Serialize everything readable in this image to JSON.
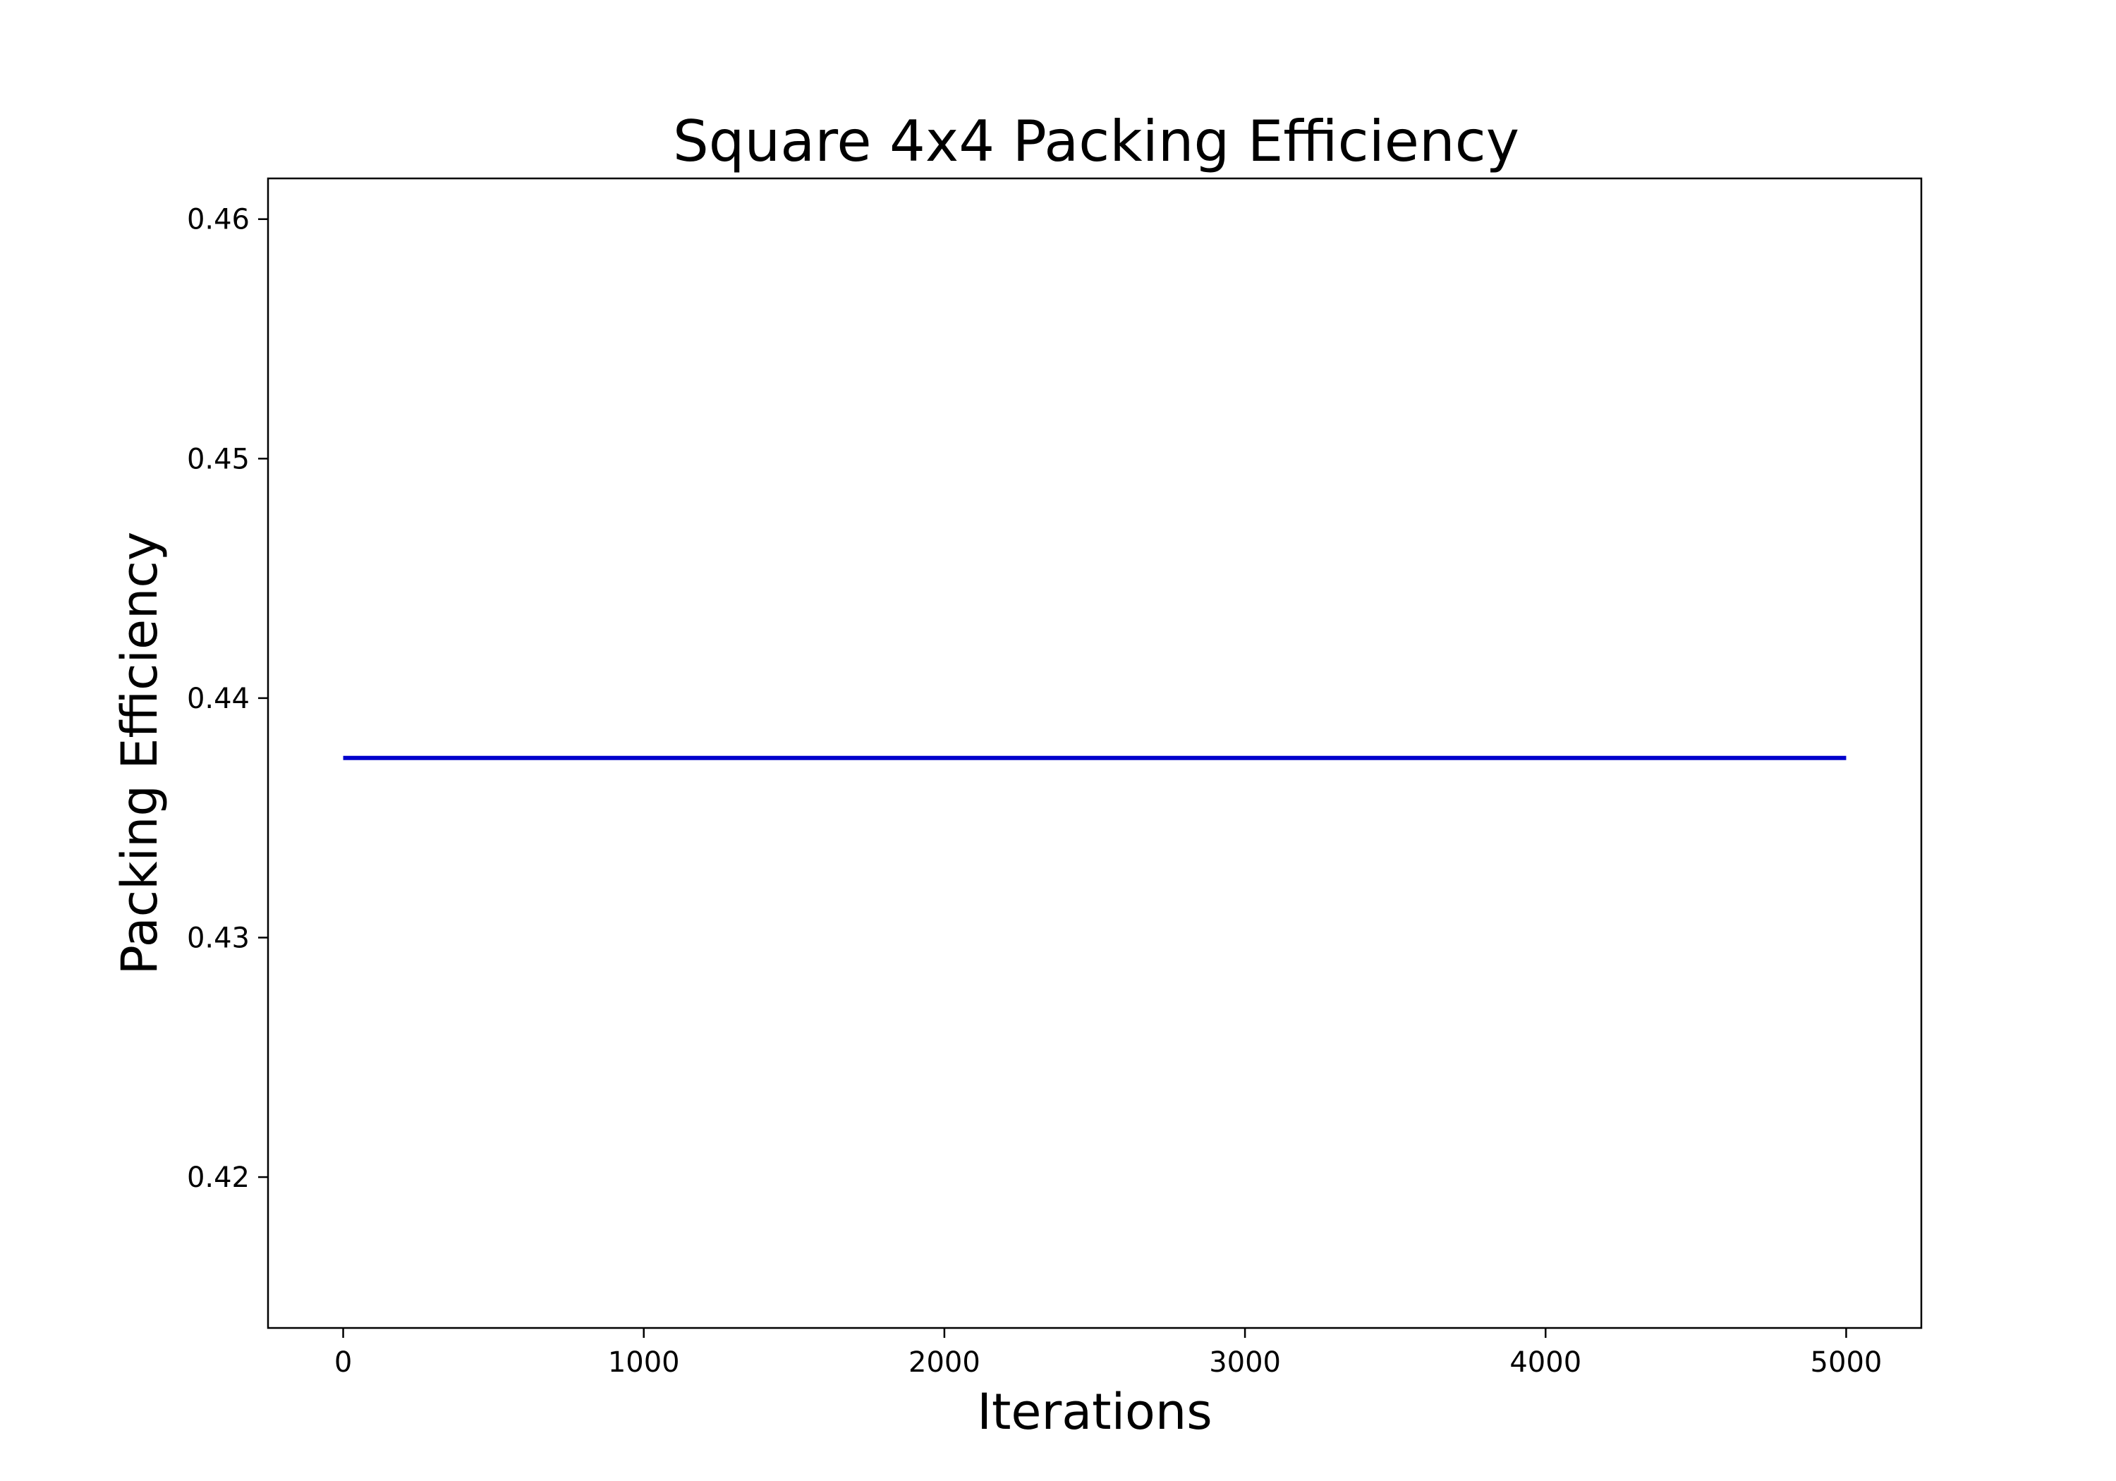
{
  "chart_data": {
    "type": "line",
    "title": "Square 4x4 Packing Efficiency",
    "xlabel": "Iterations",
    "ylabel": "Packing Efficiency",
    "xlim": [
      -250,
      5250
    ],
    "ylim": [
      0.4137,
      0.4617
    ],
    "xticks": [
      0,
      1000,
      2000,
      3000,
      4000,
      5000
    ],
    "xtick_labels": [
      "0",
      "1000",
      "2000",
      "3000",
      "4000",
      "5000"
    ],
    "yticks": [
      0.42,
      0.43,
      0.44,
      0.45,
      0.46
    ],
    "ytick_labels": [
      "0.42",
      "0.43",
      "0.44",
      "0.45",
      "0.46"
    ],
    "grid": false,
    "series": [
      {
        "color": "#0000cc",
        "x": [
          0,
          5000
        ],
        "y": [
          0.4375,
          0.4375
        ]
      }
    ]
  }
}
